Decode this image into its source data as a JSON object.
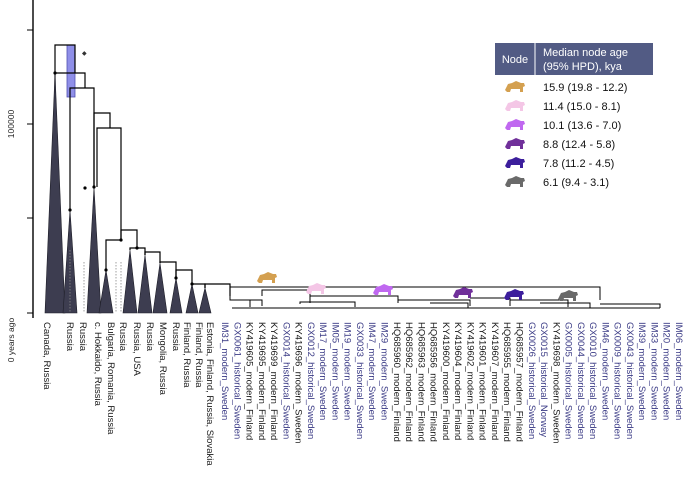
{
  "axis": {
    "y_tick_100000": "100000",
    "y_tick_0": "0 years ago"
  },
  "legend": {
    "header_node": "Node",
    "header_age": "Median node age (95% HPD), kya",
    "header_age_line1": "Median node age",
    "header_age_line2": "(95% HPD), kya",
    "rows": [
      {
        "color": "#d4a050",
        "label": "15.9 (19.8 - 12.2)"
      },
      {
        "color": "#f4c6e6",
        "label": "11.4 (15.0 - 8.1)"
      },
      {
        "color": "#c068f0",
        "label": "10.1 (13.6 - 7.0)"
      },
      {
        "color": "#70309a",
        "label": "8.8 (12.4 - 5.8)"
      },
      {
        "color": "#3c1e9c",
        "label": "7.8 (11.2 - 4.5)"
      },
      {
        "color": "#6a6a6a",
        "label": "6.1 (9.4 - 3.1)"
      }
    ]
  },
  "clades": [
    "Canada, Russia",
    "Russia",
    "Russia",
    "c. Hokkaido, Russia",
    "Bulgaria, Romania, Russia",
    "Russia",
    "Russia, USA",
    "Russia",
    "Mongolia, Russia",
    "Russia",
    "Finland, Russia",
    "Finland, Russia",
    "Estonia, Finland, Russia, Slovakia"
  ],
  "tips": [
    {
      "label": "IM31_modern_Sweden",
      "group": "sweden"
    },
    {
      "label": "GX0061_historical_Sweden",
      "group": "sweden"
    },
    {
      "label": "KY419605_modern_Finland",
      "group": "other"
    },
    {
      "label": "KY419695_modern_Finland",
      "group": "other"
    },
    {
      "label": "KY419699_modern_Finland",
      "group": "other"
    },
    {
      "label": "GX0014_historical_Sweden",
      "group": "sweden"
    },
    {
      "label": "KY419696_modern_Sweden",
      "group": "other"
    },
    {
      "label": "GX0012_historical_Sweden",
      "group": "sweden"
    },
    {
      "label": "IM17_modern_Sweden",
      "group": "sweden"
    },
    {
      "label": "IM05_modern_Sweden",
      "group": "sweden"
    },
    {
      "label": "IM19_modern_Sweden",
      "group": "sweden"
    },
    {
      "label": "GX0033_historical_Sweden",
      "group": "sweden"
    },
    {
      "label": "IM47_modern_Sweden",
      "group": "sweden"
    },
    {
      "label": "IM29_modern_Sweden",
      "group": "sweden"
    },
    {
      "label": "HQ685960_modern_Finland",
      "group": "other"
    },
    {
      "label": "HQ685962_modern_Finland",
      "group": "other"
    },
    {
      "label": "HQ685963_modern_Finland",
      "group": "other"
    },
    {
      "label": "HQ685956_modern_Finland",
      "group": "other"
    },
    {
      "label": "KY419600_modern_Finland",
      "group": "other"
    },
    {
      "label": "KY419604_modern_Finland",
      "group": "other"
    },
    {
      "label": "KY419602_modern_Finland",
      "group": "other"
    },
    {
      "label": "KY419601_modern_Finland",
      "group": "other"
    },
    {
      "label": "KY419607_modern_Finland",
      "group": "other"
    },
    {
      "label": "HQ685955_modern_Finland",
      "group": "other"
    },
    {
      "label": "HQ685957_modern_Finland",
      "group": "other"
    },
    {
      "label": "GX0026_historical_Sweden",
      "group": "sweden"
    },
    {
      "label": "GX0015_historical_Norway",
      "group": "sweden"
    },
    {
      "label": "KY419698_modern_Sweden",
      "group": "other"
    },
    {
      "label": "GX0005_historical_Sweden",
      "group": "sweden"
    },
    {
      "label": "GX0044_historical_Sweden",
      "group": "sweden"
    },
    {
      "label": "GX0010_historical_Sweden",
      "group": "sweden"
    },
    {
      "label": "IM46_modern_Sweden",
      "group": "sweden"
    },
    {
      "label": "GX0009_historical_Sweden",
      "group": "sweden"
    },
    {
      "label": "GX0043_historical_Sweden",
      "group": "sweden"
    },
    {
      "label": "IM39_modern_Sweden",
      "group": "sweden"
    },
    {
      "label": "IM33_modern_Sweden",
      "group": "sweden"
    },
    {
      "label": "IM20_modern_Sweden",
      "group": "sweden"
    },
    {
      "label": "IM06_modern_Sweden",
      "group": "sweden"
    }
  ]
}
